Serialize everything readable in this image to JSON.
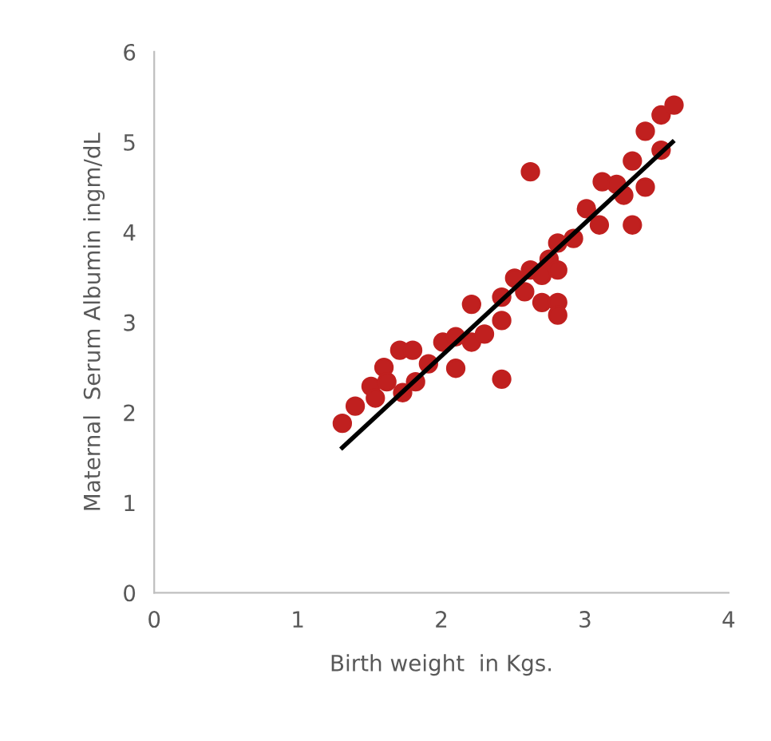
{
  "chart_data": {
    "type": "scatter",
    "xlabel": "Birth weight  in Kgs.",
    "ylabel": "Maternal  Serum Albumin ingm/dL",
    "xlim": [
      0,
      4
    ],
    "ylim": [
      0,
      6
    ],
    "xticks": [
      0,
      1,
      2,
      3,
      4
    ],
    "yticks": [
      0,
      1,
      2,
      3,
      4,
      5,
      6
    ],
    "grid": false,
    "legend": false,
    "series": [
      {
        "marker": "circle",
        "color": "#c0201f",
        "x": [
          1.31,
          1.4,
          1.51,
          1.54,
          1.6,
          1.62,
          1.71,
          1.73,
          1.8,
          1.82,
          1.91,
          2.01,
          2.1,
          2.1,
          2.21,
          2.21,
          2.3,
          2.42,
          2.42,
          2.42,
          2.51,
          2.58,
          2.62,
          2.62,
          2.7,
          2.7,
          2.75,
          2.81,
          2.81,
          2.81,
          2.81,
          2.92,
          3.01,
          3.1,
          3.12,
          3.22,
          3.27,
          3.33,
          3.33,
          3.42,
          3.42,
          3.53,
          3.53,
          3.62
        ],
        "values": [
          1.88,
          2.07,
          2.29,
          2.16,
          2.5,
          2.34,
          2.69,
          2.22,
          2.69,
          2.34,
          2.54,
          2.78,
          2.84,
          2.49,
          3.2,
          2.78,
          2.87,
          2.37,
          3.02,
          3.28,
          3.49,
          3.34,
          4.67,
          3.58,
          3.22,
          3.52,
          3.7,
          3.22,
          3.08,
          3.88,
          3.58,
          3.93,
          4.26,
          4.08,
          4.56,
          4.53,
          4.41,
          4.08,
          4.79,
          4.5,
          5.12,
          4.91,
          5.3,
          5.41
        ]
      },
      {
        "type": "line",
        "marker": "none",
        "color": "#000000",
        "x": [
          1.31,
          3.61
        ],
        "values": [
          1.61,
          5.0
        ]
      }
    ]
  }
}
